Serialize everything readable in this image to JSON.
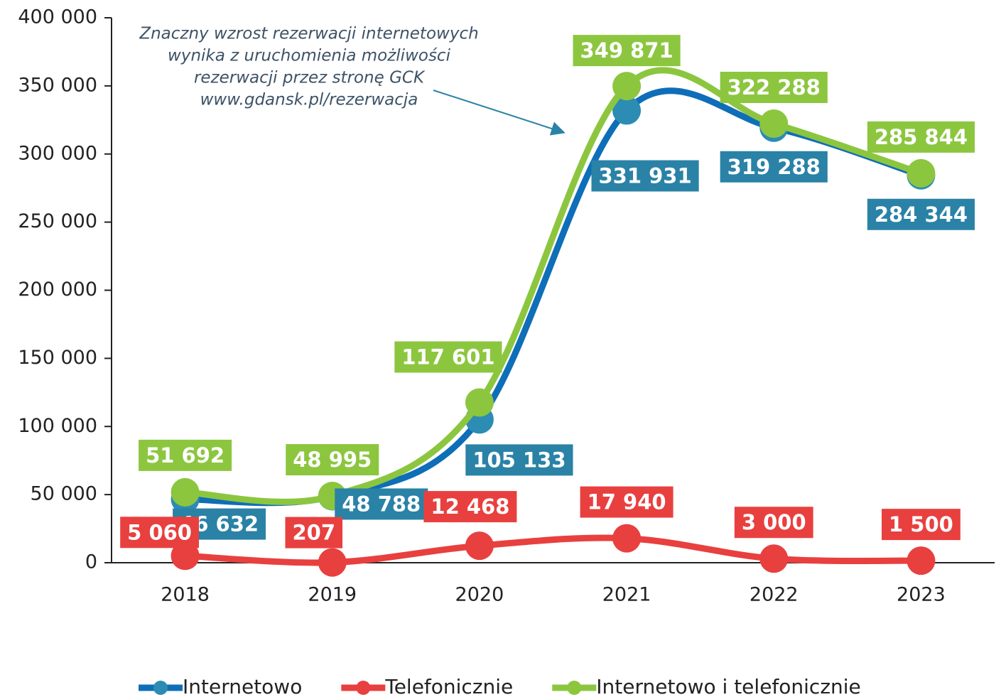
{
  "chart_data": {
    "type": "line",
    "categories": [
      "2018",
      "2019",
      "2020",
      "2021",
      "2022",
      "2023"
    ],
    "series": [
      {
        "name": "Internetowo",
        "color": "#0e6eb8",
        "marker_color": "#2c8cb4",
        "label_color": "#2a82a6",
        "values": [
          46632,
          48788,
          105133,
          331931,
          319288,
          284344
        ],
        "value_labels": [
          "46 632",
          "48 788",
          "105 133",
          "331 931",
          "319 288",
          "284 344"
        ]
      },
      {
        "name": "Telefonicznie",
        "color": "#e8403f",
        "marker_color": "#e8403f",
        "label_color": "#e8403f",
        "values": [
          5060,
          207,
          12468,
          17940,
          3000,
          1500
        ],
        "value_labels": [
          "5 060",
          "207",
          "12 468",
          "17 940",
          "3 000",
          "1 500"
        ]
      },
      {
        "name": "Internetowo i telefonicznie",
        "color": "#8cc63f",
        "marker_color": "#8cc63f",
        "label_color": "#8cc63f",
        "values": [
          51692,
          48995,
          117601,
          349871,
          322288,
          285844
        ],
        "value_labels": [
          "51 692",
          "48 995",
          "117 601",
          "349 871",
          "322 288",
          "285 844"
        ]
      }
    ],
    "ylim": [
      0,
      400000
    ],
    "yticks": [
      0,
      {
        "value": 50000,
        "label": "50 000"
      },
      {
        "value": 100000,
        "label": "100 000"
      },
      {
        "value": 150000,
        "label": "150 000"
      },
      {
        "value": 200000,
        "label": "200 000"
      },
      {
        "value": 250000,
        "label": "250 000"
      },
      {
        "value": 300000,
        "label": "300 000"
      },
      {
        "value": 350000,
        "label": "350 000"
      },
      {
        "value": 400000,
        "label": "400 000"
      }
    ],
    "annotation": [
      "Znaczny wzrost rezerwacji internetowych",
      "wynika z uruchomienia możliwości",
      "rezerwacji przez stronę GCK",
      "www.gdansk.pl/rezerwacja"
    ],
    "legend": "bottom",
    "grid": false
  }
}
